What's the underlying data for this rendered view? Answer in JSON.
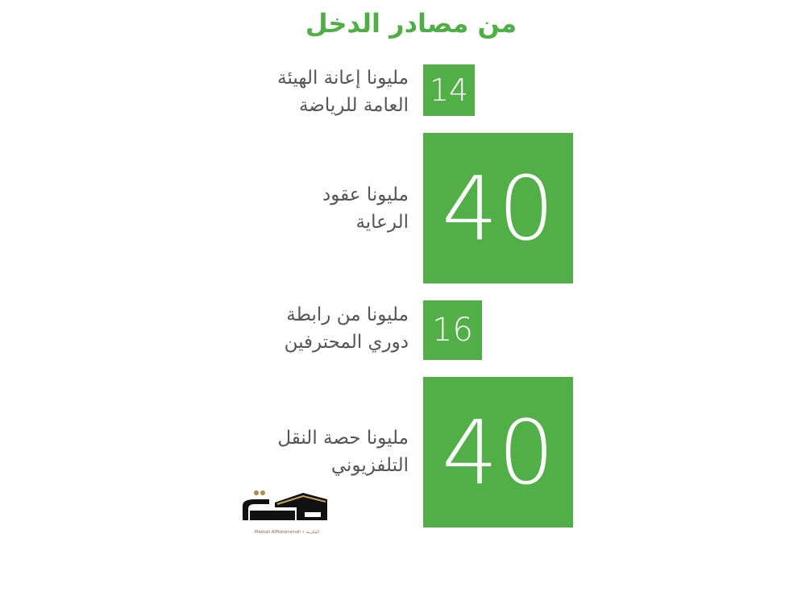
{
  "title": "من مصادر الدخل",
  "items": [
    {
      "value": "14",
      "label_line1": "مليونا إعانة الهيئة",
      "label_line2": "العامة للرياضة"
    },
    {
      "value": "40",
      "label_line1": "مليونا عقود",
      "label_line2": "الرعاية"
    },
    {
      "value": "16",
      "label_line1": "مليونا من رابطة",
      "label_line2": "دوري المحترفين"
    },
    {
      "value": "40",
      "label_line1": "مليونا حصة النقل",
      "label_line2": "التلفزيوني"
    }
  ],
  "logo": {
    "text": "مكة",
    "caption": "Makkah AlMukarramah • المكرمة"
  },
  "colors": {
    "accent": "#52ae47",
    "text": "#555555"
  }
}
